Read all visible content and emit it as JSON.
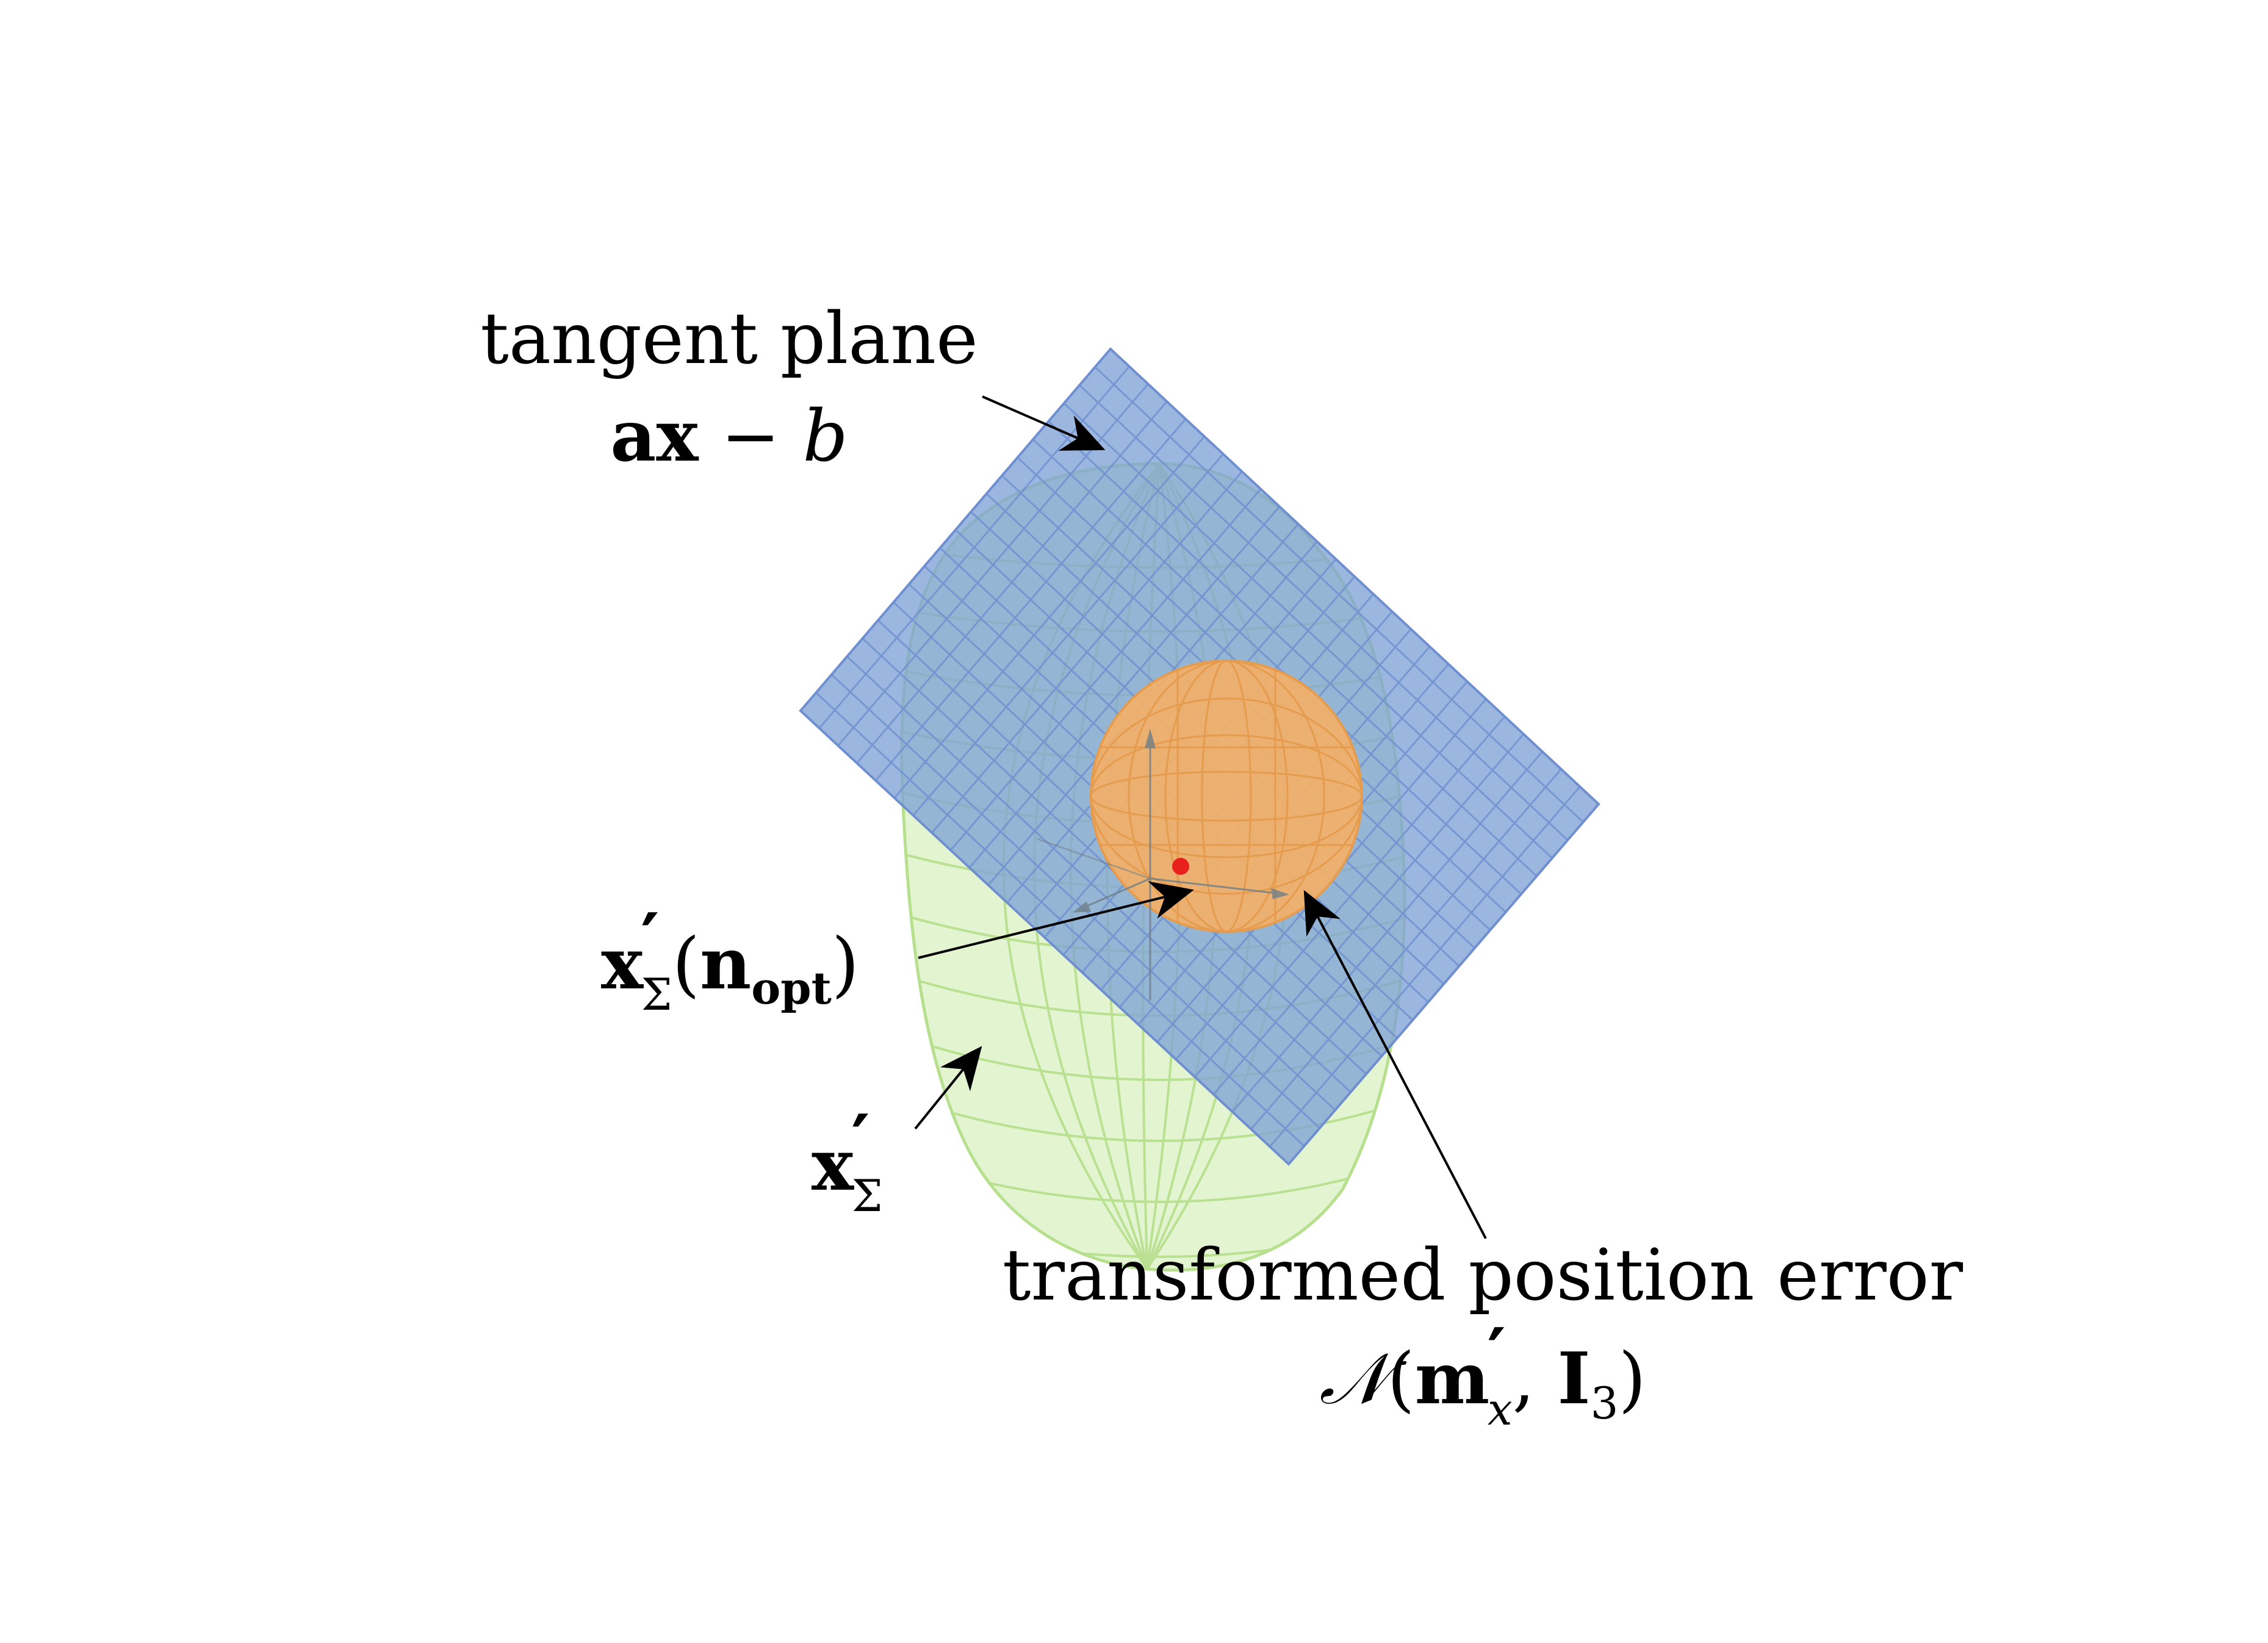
{
  "labels": {
    "tangent_plane": {
      "line1": "tangent plane",
      "math_bold": "ax",
      "math_op": " − ",
      "math_var": "b"
    },
    "x_sigma_nopt": {
      "base": "x",
      "prime": "′",
      "sub": "Σ",
      "open": "(",
      "n": "n",
      "n_sub": "opt",
      "close": ")"
    },
    "x_sigma": {
      "base": "x",
      "prime": "′",
      "sub": "Σ"
    },
    "position_error": {
      "line1": "transformed position error",
      "calN": "𝒩",
      "open": "(",
      "m": "m",
      "prime": "′",
      "m_sub": "x",
      "comma": ", ",
      "I": "I",
      "I_sub": "3",
      "close": ")"
    }
  },
  "colors": {
    "ellipsoid_fill": "#dff2c8",
    "ellipsoid_mesh": "#b7e08e",
    "plane_fill": "#7fa3d6",
    "plane_grid": "#6f8fd0",
    "sphere_fill": "#f0b06a",
    "sphere_mesh": "#e59c4e",
    "point": "#e8211c",
    "arrow": "#000000"
  }
}
